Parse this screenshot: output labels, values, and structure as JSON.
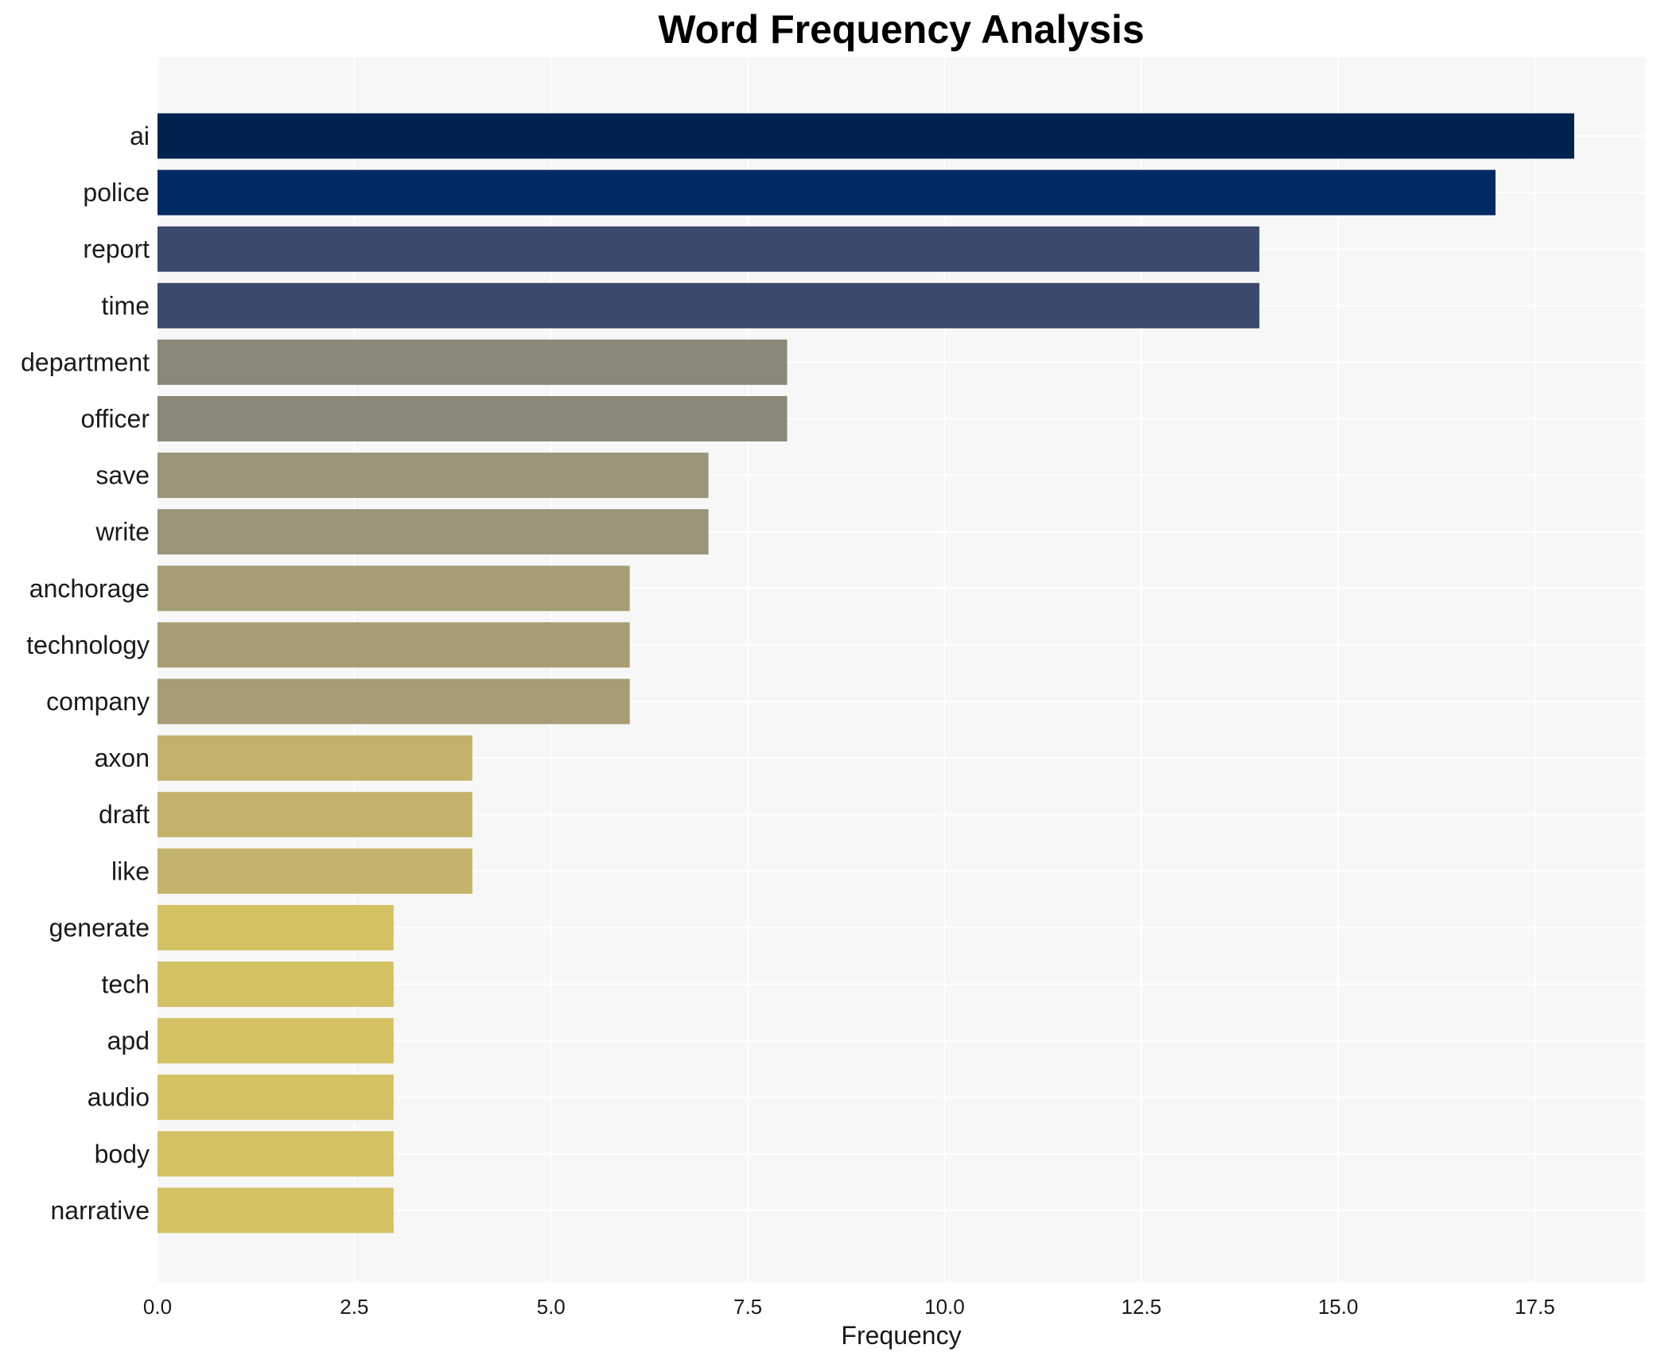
{
  "chart_data": {
    "type": "bar",
    "orientation": "horizontal",
    "title": "Word Frequency Analysis",
    "xlabel": "Frequency",
    "ylabel": "",
    "categories": [
      "ai",
      "police",
      "report",
      "time",
      "department",
      "officer",
      "save",
      "write",
      "anchorage",
      "technology",
      "company",
      "axon",
      "draft",
      "like",
      "generate",
      "tech",
      "apd",
      "audio",
      "body",
      "narrative"
    ],
    "values": [
      18,
      17,
      14,
      14,
      8,
      8,
      7,
      7,
      6,
      6,
      6,
      4,
      4,
      4,
      3,
      3,
      3,
      3,
      3,
      3
    ],
    "colors": [
      "#00224e",
      "#002a64",
      "#3b496c",
      "#3b496c",
      "#8c8877",
      "#8c8877",
      "#9b9479",
      "#9b9479",
      "#a69d75",
      "#a69d75",
      "#a69d75",
      "#c3b36a",
      "#c3b36a",
      "#c3b36a",
      "#d3c164",
      "#d3c164",
      "#d3c164",
      "#d3c164",
      "#d3c164",
      "#d3c164"
    ],
    "xlim": [
      0,
      18.9
    ],
    "xticks": [
      0.0,
      2.5,
      5.0,
      7.5,
      10.0,
      12.5,
      15.0,
      17.5
    ],
    "xtick_labels": [
      "0.0",
      "2.5",
      "5.0",
      "7.5",
      "10.0",
      "12.5",
      "15.0",
      "17.5"
    ],
    "grid": true,
    "plot_background": "#f7f7f7",
    "grid_color": "#ffffff"
  }
}
